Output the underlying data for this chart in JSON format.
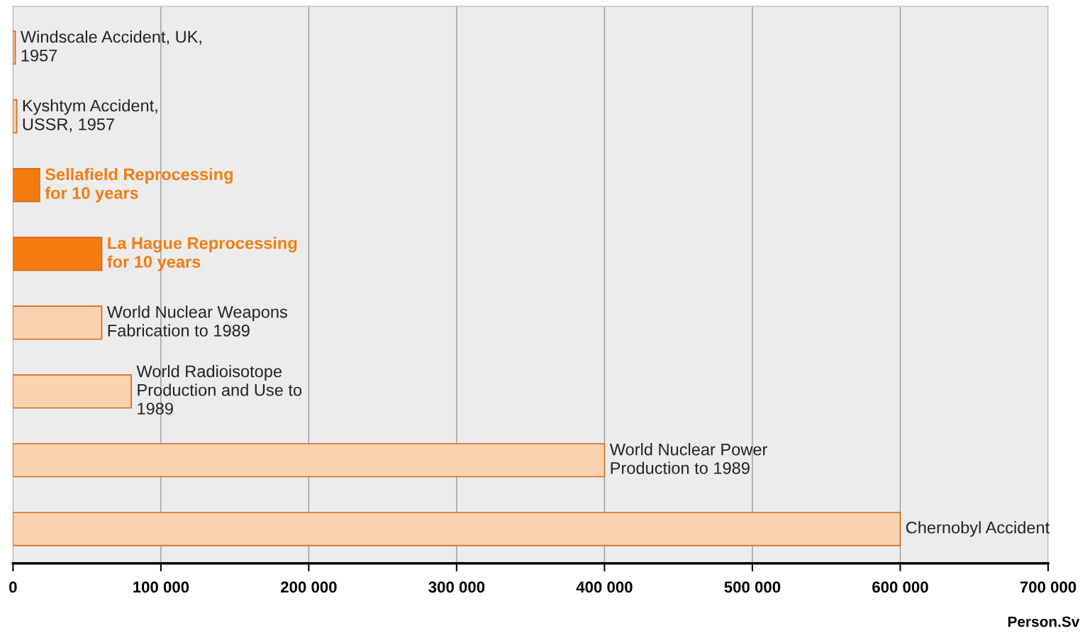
{
  "chart_data": {
    "type": "bar",
    "orientation": "horizontal",
    "xlabel": "Person.Sv",
    "categories": [
      "Windscale Accident, UK,\n1957",
      "Kyshtym Accident,\nUSSR, 1957",
      "Sellafield Reprocessing\nfor 10 years",
      "La Hague Reprocessing\nfor 10 years",
      "World Nuclear Weapons\nFabrication to 1989",
      "World Radioisotope\nProduction and Use to\n1989",
      "World Nuclear Power\nProduction to 1989",
      "Chernobyl Accident"
    ],
    "values": [
      1500,
      2500,
      18000,
      60000,
      60000,
      80000,
      400000,
      600000
    ],
    "colors": [
      "#fcd3b0",
      "#fcd3b0",
      "#f47c0f",
      "#f47c0f",
      "#fcd3b0",
      "#fcd3b0",
      "#fcd3b0",
      "#fcd3b0"
    ],
    "xlim": [
      0,
      700000
    ],
    "xticks": [
      0,
      {
        "value": 100000,
        "label": "100 000"
      },
      {
        "value": 200000,
        "label": "200 000"
      },
      {
        "value": 300000,
        "label": "300 000"
      },
      {
        "value": 400000,
        "label": "400 000"
      },
      {
        "value": 500000,
        "label": "500 000"
      },
      {
        "value": 600000,
        "label": "600 000"
      },
      {
        "value": 700000,
        "label": "700 000"
      }
    ],
    "grid": "x",
    "tick_labels": "x",
    "legend": false
  }
}
